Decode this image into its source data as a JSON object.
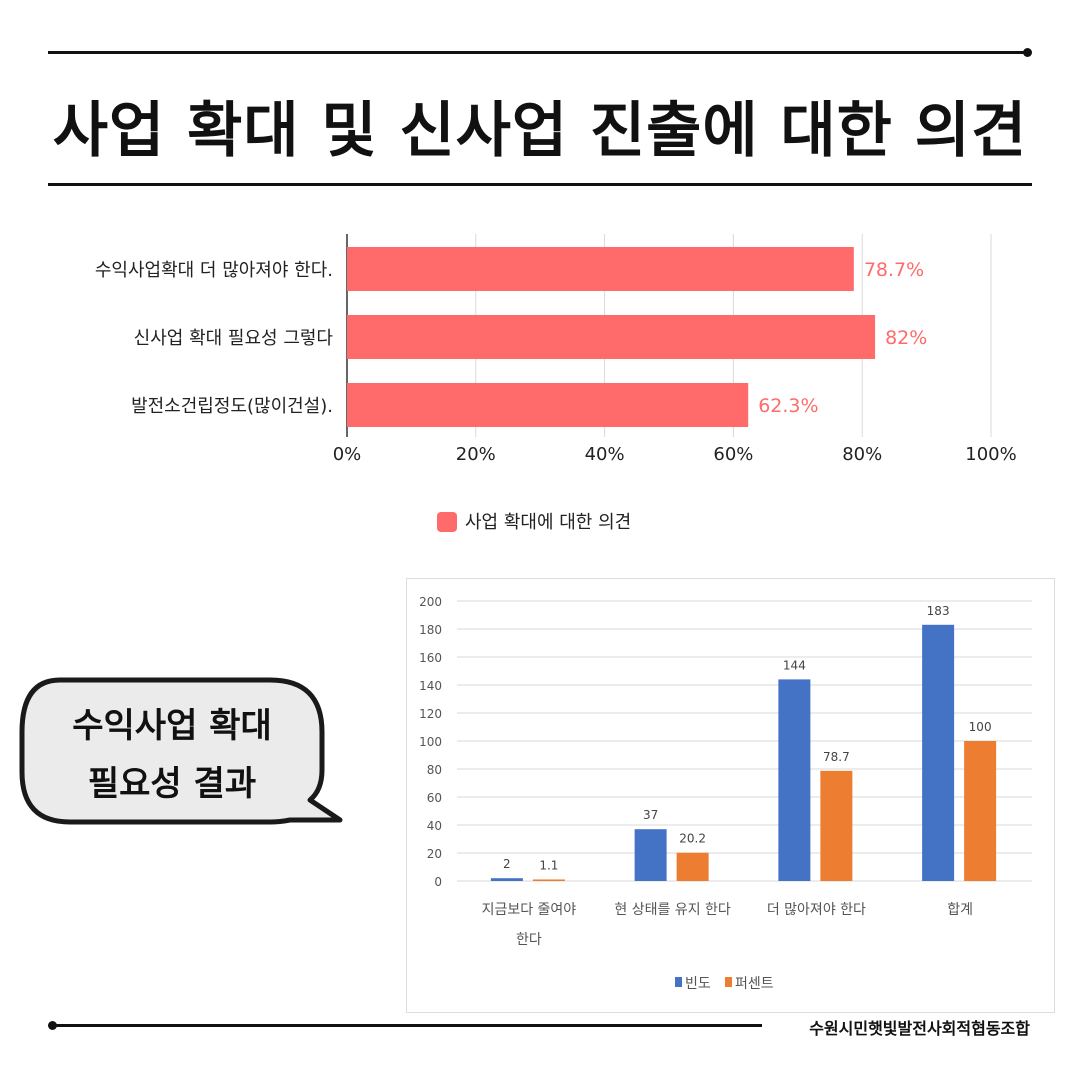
{
  "title": "사업 확대 및 신사업 진출에 대한 의견",
  "bubble": {
    "line1": "수익사업 확대",
    "line2": "필요성 결과"
  },
  "footer": "수원시민햇빛발전사회적협동조합",
  "colors": {
    "bar1": "#ff6b6b",
    "blue": "#4472c4",
    "orange": "#ed7d31"
  },
  "chart_data": [
    {
      "type": "bar",
      "orientation": "horizontal",
      "categories": [
        "수익사업확대 더 많아져야 한다.",
        "신사업 확대 필요성 그렇다",
        "발전소건립정도(많이건설)."
      ],
      "values": [
        78.7,
        82,
        62.3
      ],
      "data_labels": [
        "78.7%",
        "82%",
        "62.3%"
      ],
      "xlim": [
        0,
        100
      ],
      "xticks": [
        "0%",
        "20%",
        "40%",
        "60%",
        "80%",
        "100%"
      ],
      "grid": true,
      "legend": [
        "사업 확대에 대한 의견"
      ],
      "legend_position": "bottom"
    },
    {
      "type": "bar",
      "orientation": "vertical",
      "categories": [
        [
          "지금보다 줄여야",
          "한다"
        ],
        [
          "현 상태를 유지 한다"
        ],
        [
          "더 많아져야 한다"
        ],
        [
          "합계"
        ]
      ],
      "series": [
        {
          "name": "빈도",
          "values": [
            2,
            37,
            144,
            183
          ],
          "labels": [
            "2",
            "37",
            "144",
            "183"
          ]
        },
        {
          "name": "퍼센트",
          "values": [
            1.1,
            20.2,
            78.7,
            100
          ],
          "labels": [
            "1.1",
            "20.2",
            "78.7",
            "100"
          ]
        }
      ],
      "ylim": [
        0,
        200
      ],
      "yticks": [
        "0",
        "20",
        "40",
        "60",
        "80",
        "100",
        "120",
        "140",
        "160",
        "180",
        "200"
      ],
      "grid": true,
      "legend_position": "bottom"
    }
  ]
}
